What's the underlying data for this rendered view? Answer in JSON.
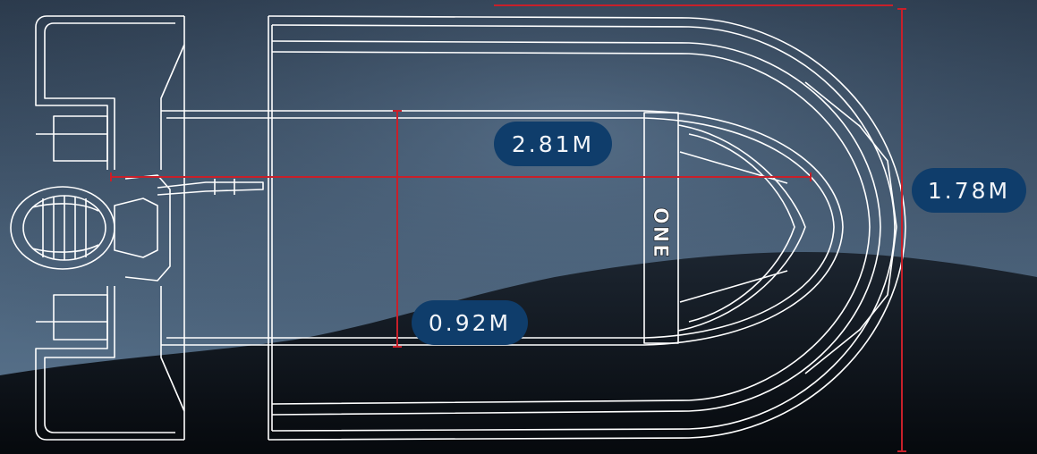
{
  "dimensions": {
    "length_label": "2.81M",
    "beam_label": "1.78M",
    "inner_width_label": "0.92M"
  },
  "boat": {
    "hull_text": "ONE"
  },
  "colors": {
    "background_dark": "#0c1118",
    "background_mid": "#3b4d61",
    "background_light": "#5d7991",
    "outline": "#ffffff",
    "dimension_line": "#c8202a",
    "label_pill": "#0f3d6b",
    "label_text": "#f2f5f9"
  }
}
